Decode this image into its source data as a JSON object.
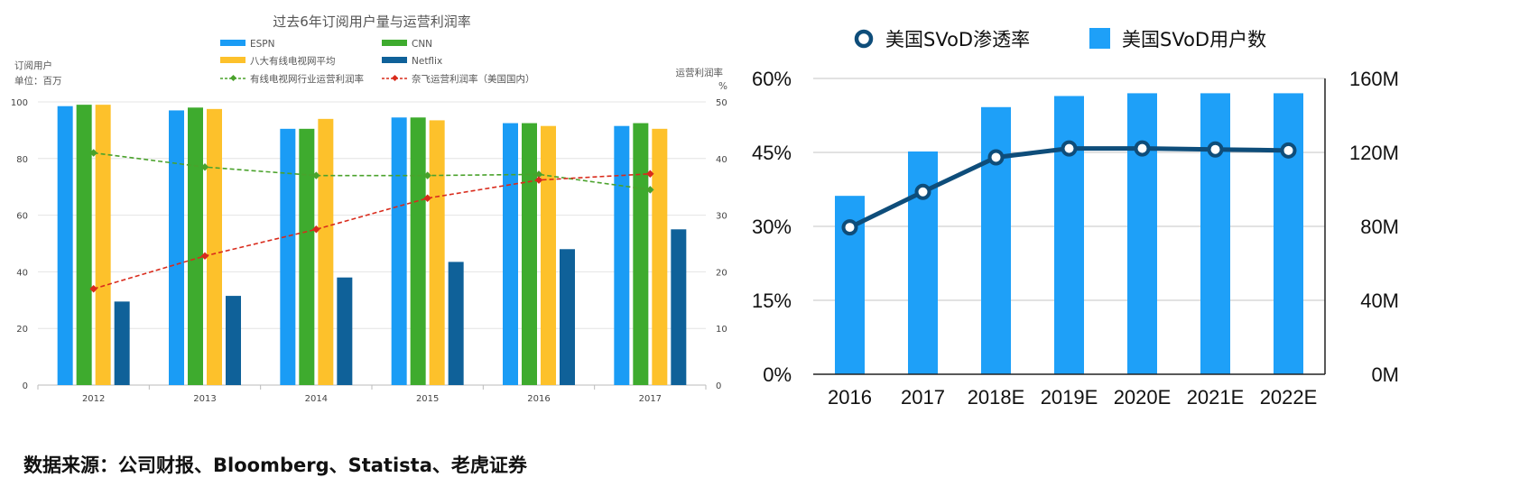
{
  "source_note": "数据来源：公司财报、Bloomberg、Statista、老虎证券",
  "chart_data": [
    {
      "type": "bar",
      "title": "过去6年订阅用户量与运营利润率",
      "ylabel_left": "订阅用户",
      "ylabel_left_unit": "单位：百万",
      "ylabel_right": "运营利润率",
      "ylabel_right_unit": "%",
      "categories": [
        "2012",
        "2013",
        "2014",
        "2015",
        "2016",
        "2017"
      ],
      "ylim_left": [
        0,
        100
      ],
      "yticks_left": [
        "0",
        "20",
        "40",
        "60",
        "80",
        "100"
      ],
      "ylim_right": [
        0,
        50
      ],
      "yticks_right": [
        "0",
        "10",
        "20",
        "30",
        "40",
        "50"
      ],
      "grid": true,
      "legend_position": "top",
      "series": [
        {
          "name": "ESPN",
          "kind": "bar",
          "axis": "left",
          "color": "#1a9cf5",
          "values": [
            98.5,
            97,
            90.5,
            94.5,
            92.5,
            91.5
          ]
        },
        {
          "name": "CNN",
          "kind": "bar",
          "axis": "left",
          "color": "#3eab2e",
          "values": [
            99,
            98,
            90.5,
            94.5,
            92.5,
            92.5
          ]
        },
        {
          "name": "八大有线电视网平均",
          "kind": "bar",
          "axis": "left",
          "color": "#fdc12b",
          "values": [
            99,
            97.5,
            94,
            93.5,
            91.5,
            90.5
          ]
        },
        {
          "name": "Netflix",
          "kind": "bar",
          "axis": "left",
          "color": "#0f6199",
          "values": [
            29.5,
            31.5,
            38,
            43.5,
            48,
            55
          ]
        },
        {
          "name": "有线电视网行业运营利润率",
          "kind": "line",
          "axis": "right",
          "color": "#4aa22c",
          "values": [
            41,
            38.5,
            37,
            37,
            37.2,
            34.5
          ]
        },
        {
          "name": "奈飞运营利润率（美国国内）",
          "kind": "line",
          "axis": "right",
          "color": "#d92b1c",
          "values": [
            17,
            22.8,
            27.5,
            33,
            36.2,
            37.3
          ]
        }
      ]
    },
    {
      "type": "bar",
      "title": "",
      "categories": [
        "2016",
        "2017",
        "2018E",
        "2019E",
        "2020E",
        "2021E",
        "2022E"
      ],
      "ylim_left": [
        0,
        60
      ],
      "yticks_left": [
        "0%",
        "15%",
        "30%",
        "45%",
        "60%"
      ],
      "ylim_right": [
        0,
        160
      ],
      "yticks_right": [
        "0M",
        "40M",
        "80M",
        "120M",
        "160M"
      ],
      "grid": true,
      "legend_position": "top",
      "series": [
        {
          "name": "美国SVoD用户数",
          "kind": "bar",
          "axis": "right",
          "color": "#1ea0f8",
          "values": [
            96.5,
            120.5,
            144.5,
            150.5,
            152,
            152,
            152
          ]
        },
        {
          "name": "美国SVoD渗透率",
          "kind": "line",
          "axis": "left",
          "color": "#0e4d7a",
          "values": [
            29.8,
            37,
            44,
            45.8,
            45.8,
            45.6,
            45.4
          ]
        }
      ]
    }
  ]
}
